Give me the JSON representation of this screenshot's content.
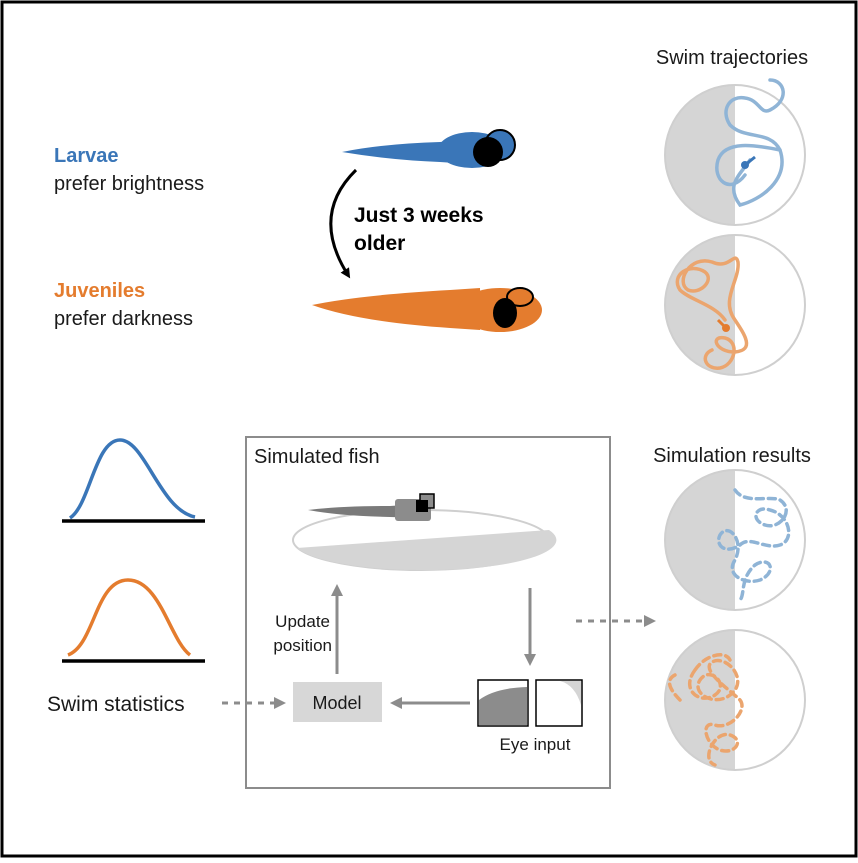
{
  "top": {
    "larvae": {
      "title": "Larvae",
      "desc": "prefer brightness"
    },
    "juveniles": {
      "title": "Juveniles",
      "desc": "prefer darkness"
    },
    "age_note": {
      "line1": "Just 3 weeks",
      "line2": "older"
    },
    "trajectories_title": "Swim trajectories"
  },
  "bottom": {
    "simulated_title": "Simulated fish",
    "update_line1": "Update",
    "update_line2": "position",
    "model_label": "Model",
    "eye_input_label": "Eye input",
    "swim_statistics_label": "Swim statistics",
    "results_title": "Simulation results"
  },
  "colors": {
    "larvae": "#3a76b8",
    "juveniles": "#e47c2e",
    "larvae_light": "#8fb4d6",
    "juveniles_light": "#eba56e",
    "gray_dark_half": "#d5d5d5",
    "arrow_gray": "#8c8c8c",
    "box_gray": "#d7d7d7"
  }
}
